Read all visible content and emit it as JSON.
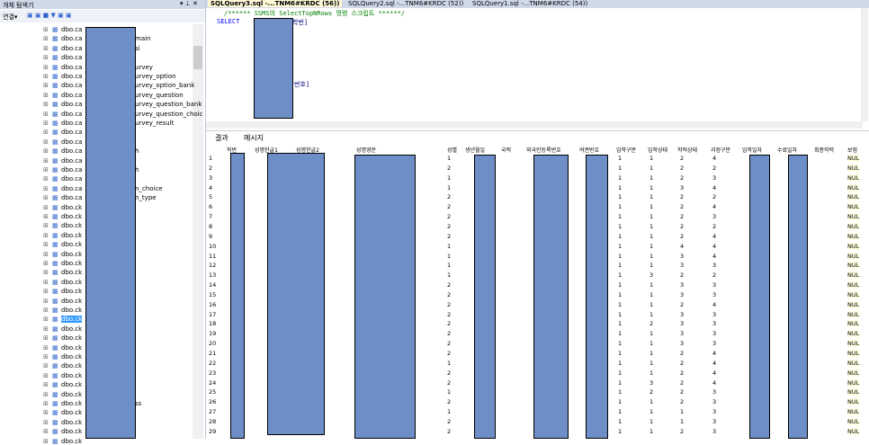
{
  "explorer": {
    "title": "개체 탐색기",
    "connect": "연결▾",
    "items": [
      {
        "prefix": "dbo.ca"
      },
      {
        "prefix": "dbo.ca",
        "suffix": "main"
      },
      {
        "prefix": "dbo.ca",
        "suffix": "si"
      },
      {
        "prefix": "dbo.ca"
      },
      {
        "prefix": "dbo.ca",
        "suffix": "urvey"
      },
      {
        "prefix": "dbo.ca",
        "suffix": "urvey_option"
      },
      {
        "prefix": "dbo.ca",
        "suffix": "urvey_option_bank"
      },
      {
        "prefix": "dbo.ca",
        "suffix": "urvey_question"
      },
      {
        "prefix": "dbo.ca",
        "suffix": "urvey_question_bank"
      },
      {
        "prefix": "dbo.ca",
        "suffix": "urvey_question_choic"
      },
      {
        "prefix": "dbo.ca",
        "suffix": "urvey_result"
      },
      {
        "prefix": "dbo.ca"
      },
      {
        "prefix": "dbo.ca"
      },
      {
        "prefix": "dbo.ca",
        "suffix": "h"
      },
      {
        "prefix": "dbo.ca"
      },
      {
        "prefix": "dbo.ca",
        "suffix": "h"
      },
      {
        "prefix": "dbo.ca"
      },
      {
        "prefix": "dbo.ca",
        "suffix": "n_choice"
      },
      {
        "prefix": "dbo.ca",
        "suffix": "n_type"
      },
      {
        "prefix": "dbo.ck"
      },
      {
        "prefix": "dbo.ck"
      },
      {
        "prefix": "dbo.ck"
      },
      {
        "prefix": "dbo.ck"
      },
      {
        "prefix": "dbo.ck"
      },
      {
        "prefix": "dbo.ck"
      },
      {
        "prefix": "dbo.ck"
      },
      {
        "prefix": "dbo.ck"
      },
      {
        "prefix": "dbo.ck"
      },
      {
        "prefix": "dbo.ck"
      },
      {
        "prefix": "dbo.ck"
      },
      {
        "prefix": "dbo.ck"
      },
      {
        "prefix": "dbo.ck",
        "selected": true
      },
      {
        "prefix": "dbo.ck"
      },
      {
        "prefix": "dbo.ck"
      },
      {
        "prefix": "dbo.ck"
      },
      {
        "prefix": "dbo.ck"
      },
      {
        "prefix": "dbo.ck"
      },
      {
        "prefix": "dbo.ck"
      },
      {
        "prefix": "dbo.ck"
      },
      {
        "prefix": "dbo.ck"
      },
      {
        "prefix": "dbo.ck",
        "suffix": "ss"
      },
      {
        "prefix": "dbo.ck"
      },
      {
        "prefix": "dbo.ck"
      },
      {
        "prefix": "dbo.ck"
      },
      {
        "prefix": "dbo.ck"
      }
    ]
  },
  "tabs": [
    "SQLQuery3.sql -...TNM6#KRDC (56))",
    "SQLQuery2.sql -...TNM6#KRDC (52))",
    "SQLQuery1.sql -...TNM6#KRDC (54))"
  ],
  "editor": {
    "comment": "/****** SSMS의 SelectTopNRows 명령 스크립트 ******/",
    "keyword": "SELECT",
    "fragment1": "학번]",
    "fragment2": "번호]"
  },
  "results": {
    "tabs": [
      "결과",
      "메시지"
    ],
    "columns": [
      "학번",
      "성명한글1",
      "성명한글2",
      "성명영문",
      "성별",
      "생년월일",
      "국적",
      "외국인등록번호",
      "여권번호",
      "입학구분",
      "입학상태",
      "학적상태",
      "과정구분",
      "입학일자",
      "수료일자",
      "최종학력",
      "보험"
    ],
    "rows": [
      [
        "1",
        "1",
        "1",
        "1",
        "2",
        "4",
        "NUL"
      ],
      [
        "2",
        "2",
        "1",
        "1",
        "2",
        "2",
        "NUL"
      ],
      [
        "3",
        "1",
        "1",
        "1",
        "2",
        "3",
        "NUL"
      ],
      [
        "4",
        "1",
        "1",
        "1",
        "3",
        "4",
        "NUL"
      ],
      [
        "5",
        "2",
        "1",
        "1",
        "2",
        "2",
        "NUL"
      ],
      [
        "6",
        "2",
        "1",
        "1",
        "2",
        "4",
        "NUL"
      ],
      [
        "7",
        "2",
        "1",
        "1",
        "2",
        "3",
        "NUL"
      ],
      [
        "8",
        "2",
        "1",
        "1",
        "2",
        "2",
        "NUL"
      ],
      [
        "9",
        "2",
        "1",
        "1",
        "2",
        "4",
        "NUL"
      ],
      [
        "10",
        "1",
        "1",
        "1",
        "4",
        "4",
        "NUL"
      ],
      [
        "11",
        "1",
        "1",
        "1",
        "3",
        "4",
        "NUL"
      ],
      [
        "12",
        "1",
        "1",
        "1",
        "3",
        "3",
        "NUL"
      ],
      [
        "13",
        "1",
        "1",
        "3",
        "2",
        "2",
        "NUL"
      ],
      [
        "14",
        "2",
        "1",
        "1",
        "3",
        "3",
        "NUL"
      ],
      [
        "15",
        "2",
        "1",
        "1",
        "3",
        "3",
        "NUL"
      ],
      [
        "16",
        "2",
        "1",
        "1",
        "2",
        "4",
        "NUL"
      ],
      [
        "17",
        "2",
        "1",
        "1",
        "3",
        "3",
        "NUL"
      ],
      [
        "18",
        "2",
        "1",
        "2",
        "3",
        "3",
        "NUL"
      ],
      [
        "19",
        "2",
        "1",
        "1",
        "3",
        "3",
        "NUL"
      ],
      [
        "20",
        "2",
        "1",
        "1",
        "3",
        "3",
        "NUL"
      ],
      [
        "21",
        "2",
        "1",
        "1",
        "2",
        "4",
        "NUL"
      ],
      [
        "22",
        "1",
        "1",
        "1",
        "2",
        "4",
        "NUL"
      ],
      [
        "23",
        "2",
        "1",
        "1",
        "2",
        "4",
        "NUL"
      ],
      [
        "24",
        "2",
        "1",
        "3",
        "2",
        "4",
        "NUL"
      ],
      [
        "25",
        "1",
        "1",
        "2",
        "2",
        "3",
        "NUL"
      ],
      [
        "26",
        "2",
        "1",
        "1",
        "2",
        "3",
        "NUL"
      ],
      [
        "27",
        "1",
        "1",
        "1",
        "1",
        "3",
        "NUL"
      ],
      [
        "28",
        "2",
        "1",
        "1",
        "1",
        "3",
        "NUL"
      ],
      [
        "29",
        "2",
        "1",
        "1",
        "2",
        "3",
        "NUL"
      ]
    ]
  }
}
